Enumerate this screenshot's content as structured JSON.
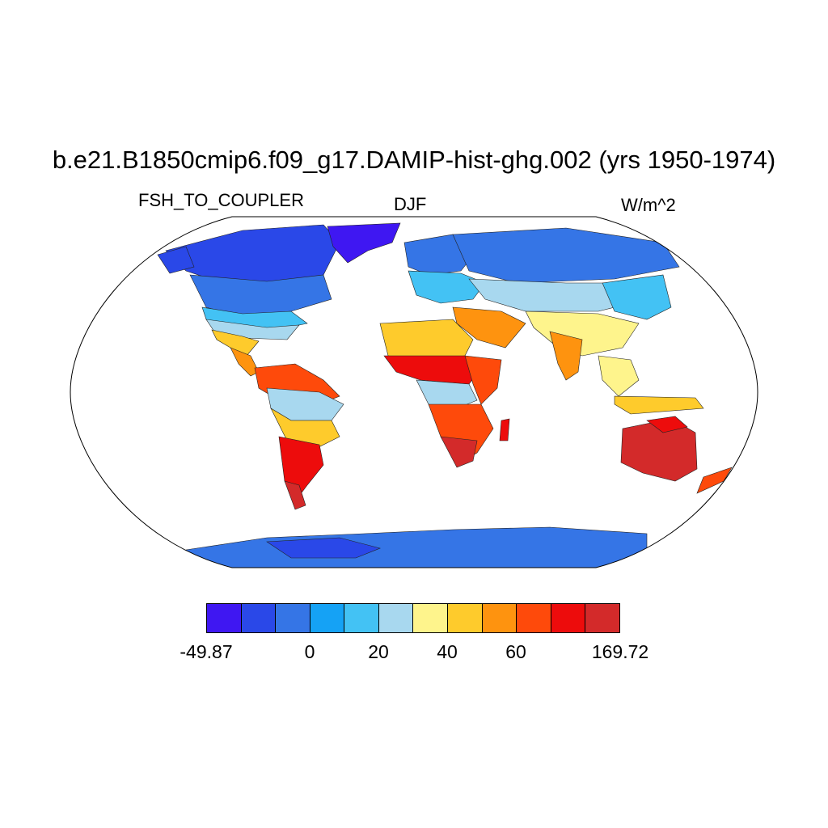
{
  "title": "b.e21.B1850cmip6.f09_g17.DAMIP-hist-ghg.002 (yrs 1950-1974)",
  "left_label": "FSH_TO_COUPLER",
  "center_label": "DJF",
  "right_label": "W/m^2",
  "colorbar": {
    "colors": [
      "#3f17f2",
      "#2a48e8",
      "#3575e6",
      "#15a2f5",
      "#43c2f4",
      "#a8d8ef",
      "#fef48c",
      "#fecb2c",
      "#fe930f",
      "#fe4a0b",
      "#ed0c0c",
      "#d32a2a"
    ],
    "tick_labels": [
      "-49.87",
      "0",
      "20",
      "40",
      "60",
      "169.72"
    ]
  },
  "map_colors": {
    "ice": "#3f17f2",
    "cold": "#2a48e8",
    "cool": "#3575e6",
    "mild": "#43c2f4",
    "pale": "#a8d8ef",
    "yellow": "#fef48c",
    "gold": "#fecb2c",
    "orange": "#fe930f",
    "redorange": "#fe4a0b",
    "red": "#ed0c0c",
    "darkred": "#d32a2a"
  }
}
